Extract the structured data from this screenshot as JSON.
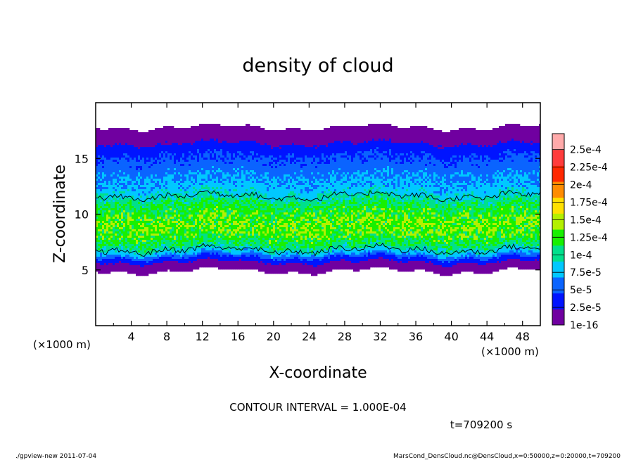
{
  "chart_data": {
    "type": "heatmap",
    "title": "density of cloud",
    "xlabel": "X-coordinate",
    "ylabel": "Z-coordinate",
    "x_unit_note": "(×1000 m)",
    "x_unit_note_bottom": "(×1000 m)",
    "xlim": [
      0,
      50
    ],
    "ylim": [
      0,
      20
    ],
    "x_ticks": [
      4,
      8,
      12,
      16,
      20,
      24,
      28,
      32,
      36,
      40,
      44,
      48
    ],
    "y_ticks": [
      5,
      10,
      15
    ],
    "colorbar": {
      "levels": [
        "1e-16",
        "2.5e-5",
        "5e-5",
        "7.5e-5",
        "1e-4",
        "1.25e-4",
        "1.5e-4",
        "1.75e-4",
        "2e-4",
        "2.25e-4",
        "2.5e-4"
      ],
      "colors": [
        "#7000a0",
        "#0014ff",
        "#0a64ff",
        "#00c8ff",
        "#00e08c",
        "#18f000",
        "#b4f000",
        "#ffe000",
        "#ff8c00",
        "#ff2800",
        "#ff3c3c",
        "#ffaaaa"
      ]
    },
    "profile": {
      "z": [
        4.9,
        5.2,
        5.6,
        6.0,
        6.5,
        7.0,
        8.0,
        9.0,
        10.0,
        11.0,
        11.8,
        12.5,
        13.5,
        14.5,
        15.5,
        16.2,
        16.7,
        17.3,
        17.8
      ],
      "density": [
        1e-06,
        5e-06,
        2e-05,
        4e-05,
        8e-05,
        0.000112,
        0.000138,
        0.000148,
        0.000138,
        0.00012,
        9.5e-05,
        8.2e-05,
        7.2e-05,
        5.8e-05,
        4.5e-05,
        3e-05,
        1.5e-05,
        5e-06,
        1e-06
      ]
    },
    "contour_level": 0.0001,
    "notes": {
      "contour_interval": "CONTOUR INTERVAL = 1.000E-04",
      "time": "t=709200 s"
    }
  },
  "footer": {
    "left": "./gpview-new 2011-07-04",
    "right": "MarsCond_DensCloud.nc@DensCloud,x=0:50000,z=0:20000,t=709200"
  }
}
